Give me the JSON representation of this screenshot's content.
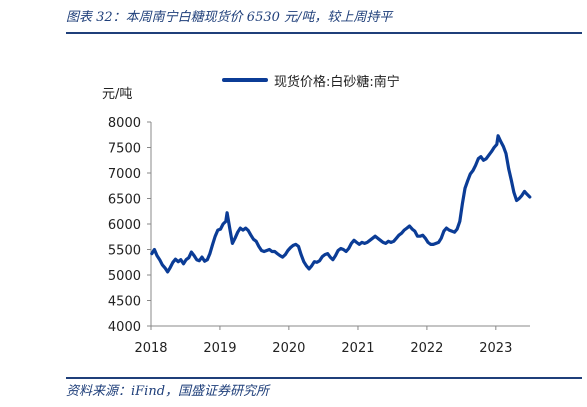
{
  "header": {
    "title": "图表 32：本周南宁白糖现货价 6530 元/吨，较上周持平"
  },
  "footer": {
    "source": "资料来源：iFind，国盛证券研究所"
  },
  "chart_data": {
    "type": "line",
    "title": "",
    "xlabel": "",
    "ylabel": "元/吨",
    "ylim": [
      4000,
      8000
    ],
    "yticks": [
      4000,
      4500,
      5000,
      5500,
      6000,
      6500,
      7000,
      7500,
      8000
    ],
    "xlim": [
      "2018-01-01",
      "2023-07-01"
    ],
    "xticks": [
      "2018",
      "2019",
      "2020",
      "2021",
      "2022",
      "2023"
    ],
    "grid": false,
    "legend": "top-center",
    "colors": {
      "series": "#0b3c96",
      "rule": "#1f3f7a"
    },
    "series": [
      {
        "name": "现货价格:白砂糖:南宁",
        "points": [
          [
            "2018-01-05",
            5420
          ],
          [
            "2018-01-19",
            5500
          ],
          [
            "2018-02-02",
            5380
          ],
          [
            "2018-02-16",
            5300
          ],
          [
            "2018-03-02",
            5200
          ],
          [
            "2018-03-16",
            5140
          ],
          [
            "2018-03-30",
            5060
          ],
          [
            "2018-04-13",
            5150
          ],
          [
            "2018-04-27",
            5250
          ],
          [
            "2018-05-11",
            5310
          ],
          [
            "2018-05-25",
            5260
          ],
          [
            "2018-06-08",
            5300
          ],
          [
            "2018-06-22",
            5220
          ],
          [
            "2018-07-06",
            5300
          ],
          [
            "2018-07-20",
            5340
          ],
          [
            "2018-08-03",
            5450
          ],
          [
            "2018-08-17",
            5380
          ],
          [
            "2018-08-31",
            5300
          ],
          [
            "2018-09-14",
            5280
          ],
          [
            "2018-09-28",
            5350
          ],
          [
            "2018-10-12",
            5270
          ],
          [
            "2018-10-26",
            5300
          ],
          [
            "2018-11-09",
            5420
          ],
          [
            "2018-11-23",
            5600
          ],
          [
            "2018-12-07",
            5760
          ],
          [
            "2018-12-21",
            5880
          ],
          [
            "2019-01-04",
            5900
          ],
          [
            "2019-01-18",
            6000
          ],
          [
            "2019-02-01",
            6050
          ],
          [
            "2019-02-08",
            6220
          ],
          [
            "2019-02-22",
            5920
          ],
          [
            "2019-03-08",
            5620
          ],
          [
            "2019-03-22",
            5720
          ],
          [
            "2019-04-05",
            5840
          ],
          [
            "2019-04-19",
            5920
          ],
          [
            "2019-05-03",
            5880
          ],
          [
            "2019-05-17",
            5920
          ],
          [
            "2019-05-31",
            5870
          ],
          [
            "2019-06-14",
            5780
          ],
          [
            "2019-06-28",
            5700
          ],
          [
            "2019-07-12",
            5660
          ],
          [
            "2019-07-26",
            5560
          ],
          [
            "2019-08-09",
            5480
          ],
          [
            "2019-08-23",
            5460
          ],
          [
            "2019-09-06",
            5480
          ],
          [
            "2019-09-20",
            5500
          ],
          [
            "2019-10-04",
            5460
          ],
          [
            "2019-10-18",
            5460
          ],
          [
            "2019-11-01",
            5420
          ],
          [
            "2019-11-15",
            5380
          ],
          [
            "2019-11-29",
            5350
          ],
          [
            "2019-12-13",
            5400
          ],
          [
            "2019-12-27",
            5480
          ],
          [
            "2020-01-10",
            5540
          ],
          [
            "2020-01-24",
            5580
          ],
          [
            "2020-02-07",
            5600
          ],
          [
            "2020-02-21",
            5560
          ],
          [
            "2020-03-06",
            5400
          ],
          [
            "2020-03-20",
            5260
          ],
          [
            "2020-04-03",
            5180
          ],
          [
            "2020-04-17",
            5120
          ],
          [
            "2020-05-01",
            5180
          ],
          [
            "2020-05-15",
            5260
          ],
          [
            "2020-05-29",
            5250
          ],
          [
            "2020-06-12",
            5280
          ],
          [
            "2020-06-26",
            5360
          ],
          [
            "2020-07-10",
            5400
          ],
          [
            "2020-07-24",
            5420
          ],
          [
            "2020-08-07",
            5350
          ],
          [
            "2020-08-21",
            5300
          ],
          [
            "2020-09-04",
            5380
          ],
          [
            "2020-09-18",
            5480
          ],
          [
            "2020-10-02",
            5520
          ],
          [
            "2020-10-16",
            5500
          ],
          [
            "2020-10-30",
            5460
          ],
          [
            "2020-11-13",
            5520
          ],
          [
            "2020-11-27",
            5620
          ],
          [
            "2020-12-11",
            5680
          ],
          [
            "2020-12-25",
            5640
          ],
          [
            "2021-01-08",
            5600
          ],
          [
            "2021-01-22",
            5640
          ],
          [
            "2021-02-05",
            5620
          ],
          [
            "2021-02-19",
            5640
          ],
          [
            "2021-03-05",
            5680
          ],
          [
            "2021-03-19",
            5720
          ],
          [
            "2021-04-02",
            5760
          ],
          [
            "2021-04-16",
            5720
          ],
          [
            "2021-04-30",
            5680
          ],
          [
            "2021-05-14",
            5640
          ],
          [
            "2021-05-28",
            5620
          ],
          [
            "2021-06-11",
            5660
          ],
          [
            "2021-06-25",
            5640
          ],
          [
            "2021-07-09",
            5660
          ],
          [
            "2021-07-23",
            5720
          ],
          [
            "2021-08-06",
            5780
          ],
          [
            "2021-08-20",
            5820
          ],
          [
            "2021-09-03",
            5880
          ],
          [
            "2021-09-17",
            5920
          ],
          [
            "2021-10-01",
            5960
          ],
          [
            "2021-10-15",
            5900
          ],
          [
            "2021-10-29",
            5860
          ],
          [
            "2021-11-12",
            5760
          ],
          [
            "2021-11-26",
            5760
          ],
          [
            "2021-12-10",
            5780
          ],
          [
            "2021-12-24",
            5720
          ],
          [
            "2022-01-07",
            5640
          ],
          [
            "2022-01-21",
            5600
          ],
          [
            "2022-02-04",
            5600
          ],
          [
            "2022-02-18",
            5620
          ],
          [
            "2022-03-04",
            5640
          ],
          [
            "2022-03-18",
            5720
          ],
          [
            "2022-04-01",
            5860
          ],
          [
            "2022-04-15",
            5920
          ],
          [
            "2022-04-29",
            5880
          ],
          [
            "2022-05-13",
            5860
          ],
          [
            "2022-05-27",
            5840
          ],
          [
            "2022-06-10",
            5900
          ],
          [
            "2022-06-24",
            6050
          ],
          [
            "2022-07-08",
            6400
          ],
          [
            "2022-07-22",
            6700
          ],
          [
            "2022-08-05",
            6850
          ],
          [
            "2022-08-19",
            6980
          ],
          [
            "2022-09-02",
            7050
          ],
          [
            "2022-09-16",
            7150
          ],
          [
            "2022-09-30",
            7280
          ],
          [
            "2022-10-14",
            7320
          ],
          [
            "2022-10-28",
            7250
          ],
          [
            "2022-11-11",
            7280
          ],
          [
            "2022-11-25",
            7350
          ],
          [
            "2022-12-09",
            7420
          ],
          [
            "2022-12-23",
            7500
          ],
          [
            "2023-01-06",
            7560
          ],
          [
            "2023-01-13",
            7730
          ],
          [
            "2023-01-27",
            7620
          ],
          [
            "2023-02-10",
            7520
          ],
          [
            "2023-02-24",
            7380
          ],
          [
            "2023-03-10",
            7080
          ],
          [
            "2023-03-24",
            6860
          ],
          [
            "2023-04-07",
            6620
          ],
          [
            "2023-04-21",
            6460
          ],
          [
            "2023-05-05",
            6500
          ],
          [
            "2023-05-19",
            6560
          ],
          [
            "2023-06-02",
            6640
          ],
          [
            "2023-06-16",
            6580
          ],
          [
            "2023-06-30",
            6530
          ]
        ]
      }
    ]
  }
}
